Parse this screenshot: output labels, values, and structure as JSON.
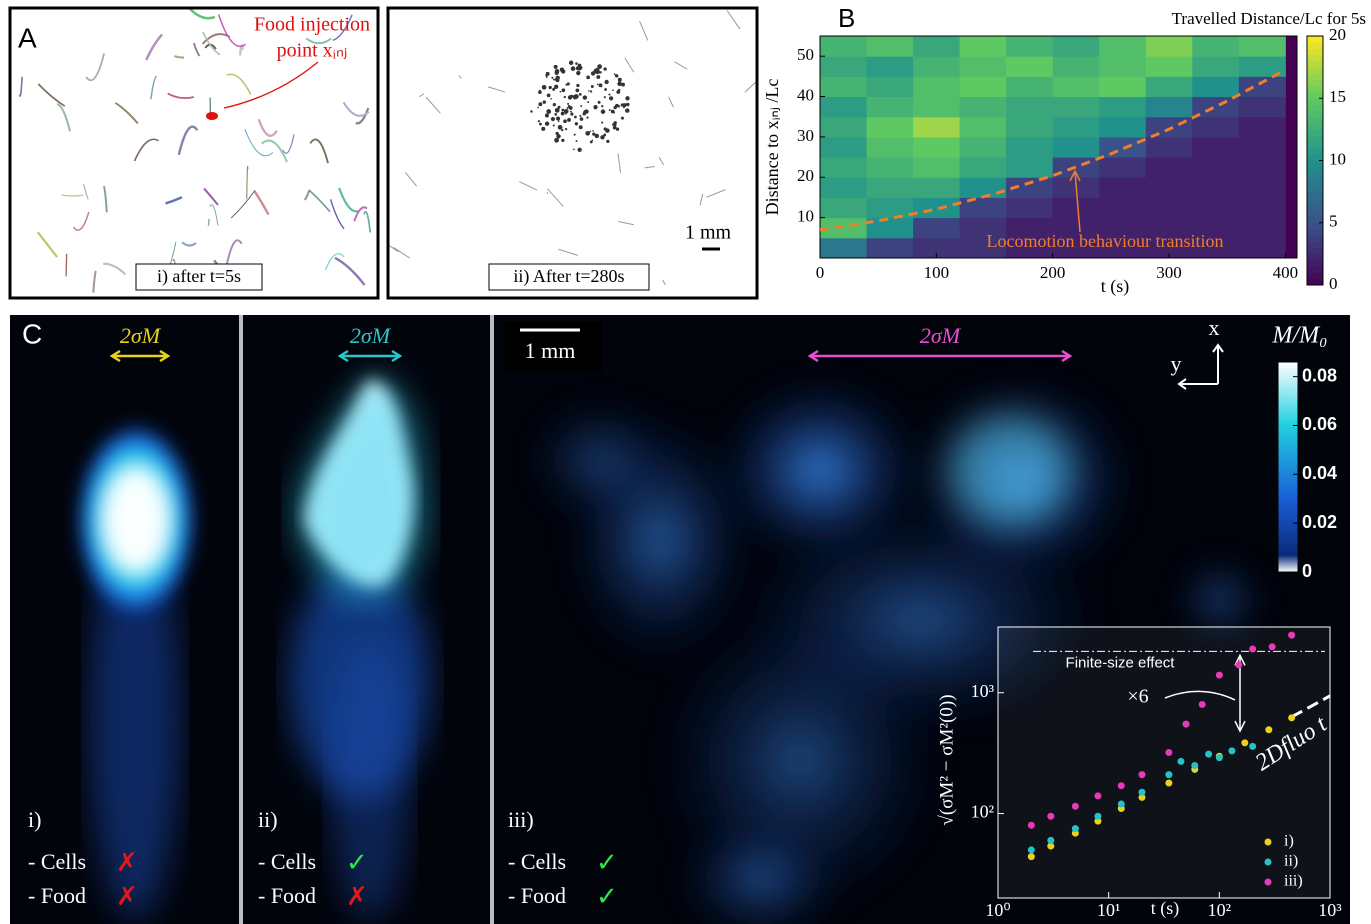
{
  "panels": {
    "a_label": "A",
    "b_label": "B",
    "c_label": "C",
    "a_images": [
      {
        "caption": "i) after t=5s"
      },
      {
        "caption": "ii) After t=280s"
      }
    ],
    "a_annotation": [
      "Food injection",
      "point xᵢₙⱼ"
    ],
    "a_scale": "1 mm",
    "c_images": [
      {
        "label": "i)",
        "width_label": "2σM",
        "width_color": "#e8d21d",
        "cells": "✗",
        "food": "✗"
      },
      {
        "label": "ii)",
        "width_label": "2σM",
        "width_color": "#2cc6c6",
        "cells": "✓",
        "food": "✗"
      },
      {
        "label": "iii)",
        "width_label": "2σM",
        "width_color": "#e84fcf",
        "cells": "✓",
        "food": "✓"
      }
    ],
    "cells_text": "- Cells",
    "food_text": "- Food",
    "c_scale": "1 mm",
    "axis_x": "x",
    "axis_y": "y"
  },
  "chart_data": [
    {
      "type": "heatmap",
      "title": "Travelled Distance/Lc for 5s",
      "x_label": "t (s)",
      "y_label": "Distance to xᵢₙⱼ /Lc",
      "xbins": [
        0,
        40,
        80,
        120,
        160,
        200,
        240,
        280,
        320,
        360,
        400
      ],
      "ybins": [
        0,
        5,
        10,
        15,
        20,
        25,
        30,
        35,
        40,
        45,
        50,
        55
      ],
      "z": [
        [
          8,
          4,
          3,
          3,
          2,
          2,
          2,
          2,
          2,
          2
        ],
        [
          14,
          10,
          4,
          3,
          2,
          2,
          2,
          2,
          2,
          2
        ],
        [
          12,
          11,
          10,
          4,
          3,
          2,
          2,
          2,
          2,
          2
        ],
        [
          11,
          12,
          12,
          10,
          4,
          3,
          2,
          2,
          2,
          2
        ],
        [
          12,
          13,
          14,
          12,
          11,
          4,
          3,
          2,
          2,
          2
        ],
        [
          11,
          14,
          15,
          13,
          11,
          10,
          5,
          3,
          2,
          2
        ],
        [
          12,
          15,
          17,
          14,
          12,
          11,
          10,
          4,
          3,
          2
        ],
        [
          11,
          13,
          14,
          13,
          12,
          12,
          11,
          9,
          4,
          3
        ],
        [
          13,
          12,
          14,
          15,
          13,
          14,
          15,
          12,
          10,
          4
        ],
        [
          12,
          11,
          13,
          14,
          15,
          13,
          14,
          15,
          12,
          11
        ],
        [
          13,
          14,
          12,
          15,
          13,
          12,
          14,
          16,
          13,
          14
        ]
      ],
      "xlim": [
        0,
        410
      ],
      "ylim": [
        0,
        55
      ],
      "xticks": [
        0,
        100,
        200,
        300,
        400
      ],
      "yticks": [
        10,
        20,
        30,
        40,
        50
      ],
      "zlim": [
        0,
        20
      ],
      "zticks": [
        0,
        5,
        10,
        15,
        20
      ],
      "colormap": "viridis",
      "transition": {
        "name": "Locomotion behaviour transition",
        "color": "#f07f2a",
        "x": [
          0,
          50,
          100,
          150,
          200,
          250,
          300,
          350,
          400
        ],
        "values": [
          7,
          9.2,
          12.1,
          15.9,
          20.4,
          25.8,
          31.9,
          38.9,
          46.6
        ]
      }
    },
    {
      "type": "scatter",
      "log_x": true,
      "log_y": true,
      "x_label": "t (s)",
      "y_label": "√(σM² − σM²(0))",
      "xlim": [
        1,
        1000
      ],
      "ylim": [
        20,
        3500
      ],
      "xticks": [
        {
          "value": 1,
          "label": "10⁰"
        },
        {
          "value": 10,
          "label": "10¹"
        },
        {
          "value": 100,
          "label": "10²"
        },
        {
          "value": 1000,
          "label": "10³"
        }
      ],
      "yticks": [
        {
          "value": 100,
          "label": "10²"
        },
        {
          "value": 1000,
          "label": "10³"
        }
      ],
      "legend": "lower right",
      "series": [
        {
          "name": "i)",
          "color": "#e8d21d",
          "x": [
            2,
            3,
            5,
            8,
            13,
            20,
            35,
            60,
            100,
            170,
            280,
            450
          ],
          "values": [
            44,
            53.8,
            68.8,
            86.6,
            110,
            136,
            179,
            232,
            298,
            385,
            494,
            620
          ]
        },
        {
          "name": "ii)",
          "color": "#25c4c4",
          "x": [
            2,
            3,
            5,
            8,
            13,
            20,
            35,
            45,
            60,
            80,
            100,
            130,
            200
          ],
          "values": [
            50,
            60,
            75,
            95,
            120,
            150,
            210,
            270,
            250,
            310,
            290,
            330,
            360
          ]
        },
        {
          "name": "iii)",
          "color": "#e83ab8",
          "x": [
            2,
            3,
            5,
            8,
            13,
            20,
            35,
            50,
            70,
            100,
            150,
            200,
            300,
            450
          ],
          "values": [
            80,
            95,
            115,
            140,
            170,
            210,
            320,
            550,
            800,
            1400,
            1700,
            2300,
            2400,
            3000
          ]
        }
      ],
      "finite_size": {
        "label": "Finite-size effect",
        "value": 2200
      },
      "fit": {
        "label": "2Dfluo t",
        "x": [
          450,
          1000
        ],
        "values": [
          630,
          942
        ]
      },
      "ratio_label": "×6"
    },
    {
      "type": "colorbar",
      "title": "M/M₀",
      "ylim": [
        0,
        0.086
      ],
      "yticks": [
        0,
        0.02,
        0.04,
        0.06,
        0.08
      ]
    }
  ]
}
